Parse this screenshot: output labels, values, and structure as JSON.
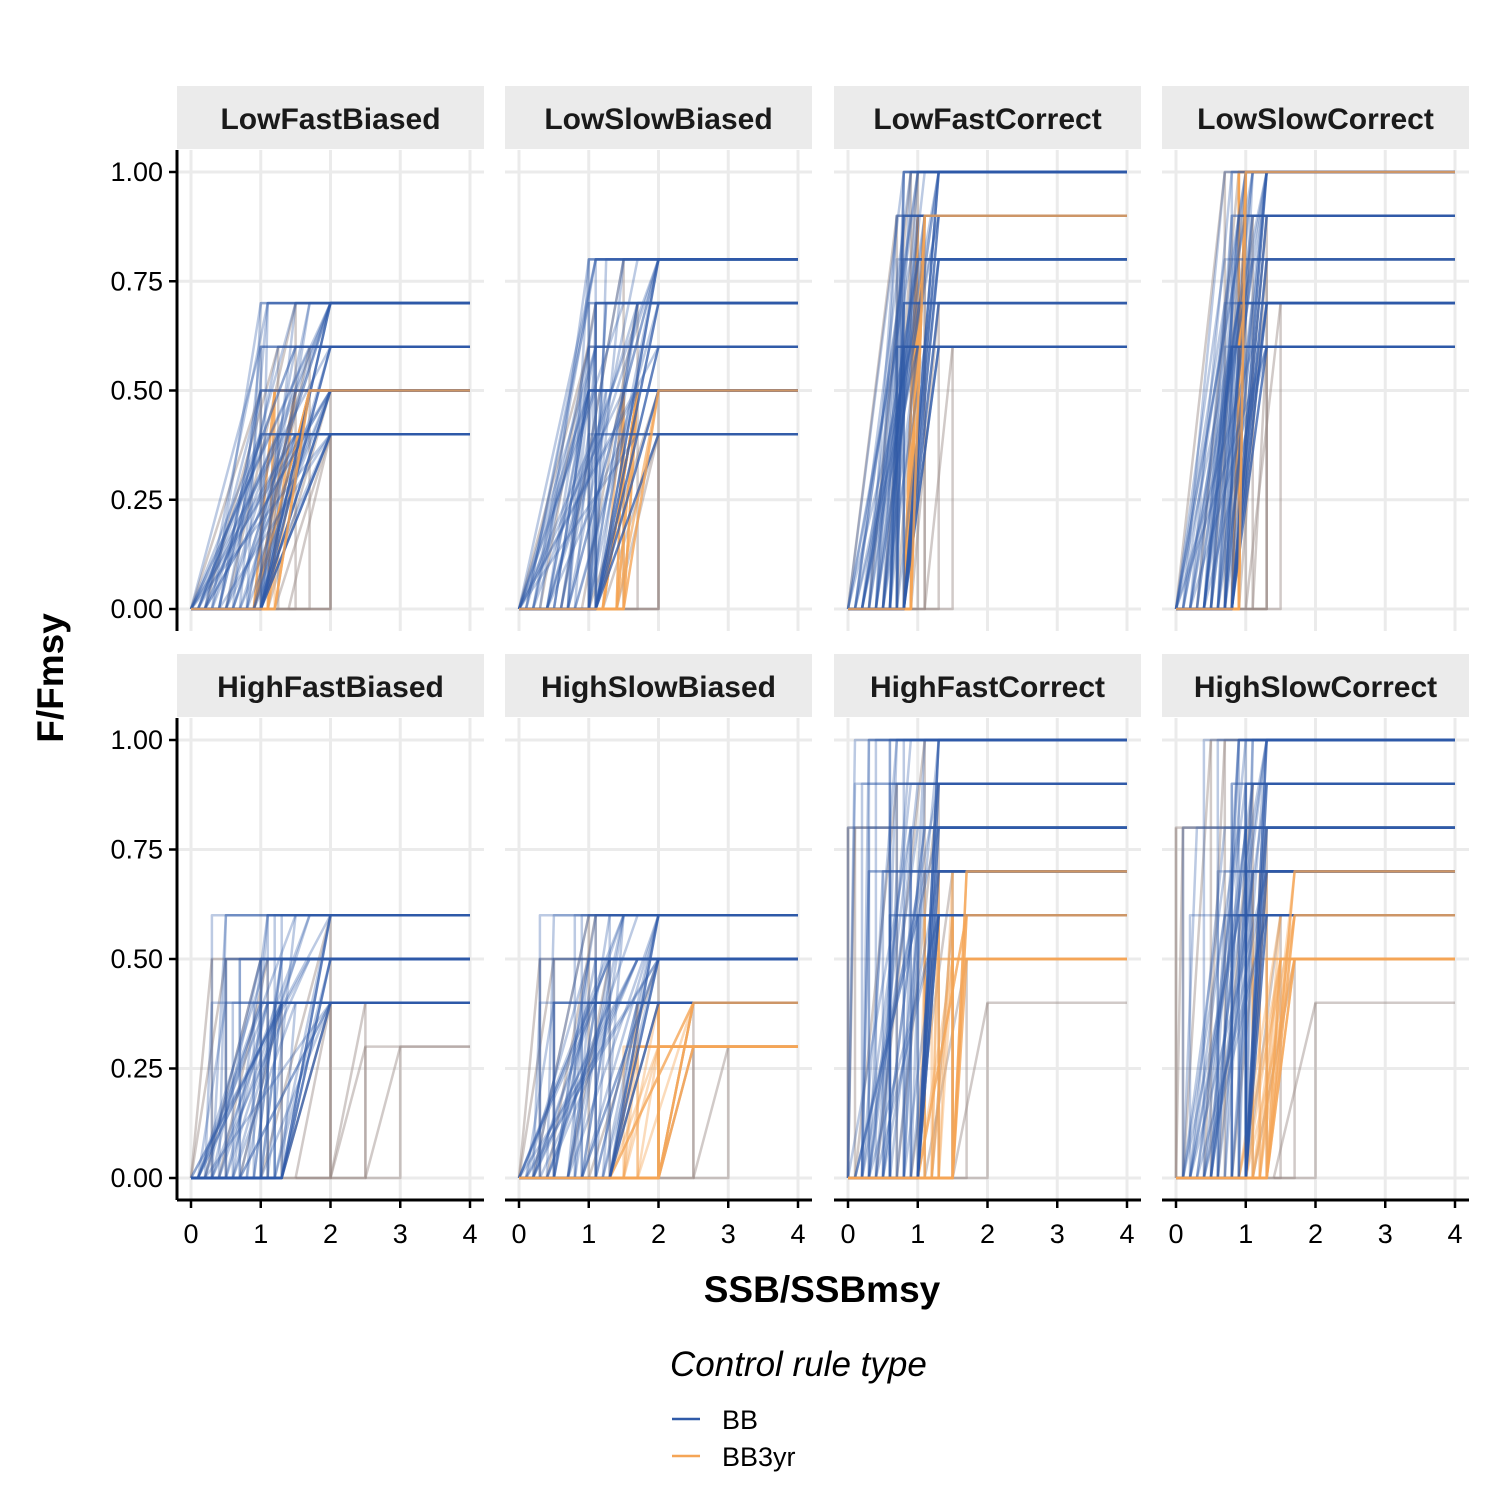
{
  "chart_data": {
    "type": "line",
    "xlabel": "SSB/SSBmsy",
    "ylabel": "F/Fmsy",
    "xlim": [
      0,
      4
    ],
    "ylim": [
      0,
      1
    ],
    "x_ticks": [
      "0",
      "1",
      "2",
      "3",
      "4"
    ],
    "y_ticks": [
      "0.00",
      "0.25",
      "0.50",
      "0.75",
      "1.00"
    ],
    "grid": true,
    "legend": {
      "title": "Control rule type",
      "position": "bottom",
      "items": [
        {
          "name": "BB",
          "color": "#2f5aa8"
        },
        {
          "name": "BB3yr",
          "color": "#f5a556"
        }
      ]
    },
    "panels": [
      {
        "title": "LowFastBiased",
        "BB_lim": [
          0.0,
          0.1,
          0.2,
          0.3,
          0.4,
          0.5,
          0.6,
          0.7,
          0.8,
          0.9,
          1.0,
          1.0
        ],
        "BB_trig": [
          1.0,
          1.1,
          1.25,
          1.5,
          1.7,
          2.0
        ],
        "BB_fmax": [
          0.4,
          0.5,
          0.6,
          0.7
        ],
        "BB3yr_lim": [
          0.9,
          1.1,
          1.2
        ],
        "BB3yr_trig": [
          1.2,
          1.5,
          1.7
        ],
        "BB3yr_fmax": [
          0.5
        ],
        "steps": [
          [
            0.0,
            1.0,
            0.5
          ],
          [
            0.2,
            1.25,
            0.6
          ],
          [
            0.5,
            1.5,
            0.7
          ],
          [
            0.9,
            1.7,
            0.6
          ],
          [
            1.1,
            2.0,
            0.5
          ],
          [
            1.2,
            2.0,
            0.4
          ],
          [
            1.4,
            2.0,
            0.4
          ]
        ]
      },
      {
        "title": "LowSlowBiased",
        "BB_lim": [
          0.0,
          0.1,
          0.2,
          0.3,
          0.4,
          0.5,
          0.6,
          0.7,
          0.8,
          1.0,
          1.0,
          1.1
        ],
        "BB_trig": [
          1.0,
          1.1,
          1.25,
          1.5,
          1.7,
          2.0
        ],
        "BB_fmax": [
          0.4,
          0.5,
          0.6,
          0.7,
          0.8
        ],
        "BB3yr_lim": [
          1.2,
          1.4,
          1.5
        ],
        "BB3yr_trig": [
          1.5,
          1.7,
          2.0
        ],
        "BB3yr_fmax": [
          0.5
        ],
        "steps": [
          [
            0.0,
            1.0,
            0.6
          ],
          [
            0.3,
            1.1,
            0.7
          ],
          [
            0.6,
            1.5,
            0.8
          ],
          [
            0.9,
            1.7,
            0.7
          ],
          [
            1.0,
            2.0,
            0.5
          ],
          [
            1.2,
            2.0,
            0.4
          ],
          [
            1.4,
            2.0,
            0.4
          ]
        ]
      },
      {
        "title": "LowFastCorrect",
        "BB_lim": [
          0.0,
          0.1,
          0.2,
          0.3,
          0.4,
          0.5,
          0.6,
          0.7,
          0.8
        ],
        "BB_trig": [
          0.7,
          0.8,
          0.9,
          1.0,
          1.1,
          1.3
        ],
        "BB_fmax": [
          0.6,
          0.7,
          0.8,
          0.9,
          1.0
        ],
        "BB3yr_lim": [
          0.8,
          0.9
        ],
        "BB3yr_trig": [
          1.0,
          1.1
        ],
        "BB3yr_fmax": [
          0.9
        ],
        "steps": [
          [
            0.0,
            0.7,
            0.9
          ],
          [
            0.3,
            0.9,
            1.0
          ],
          [
            0.5,
            1.0,
            1.0
          ],
          [
            0.7,
            1.1,
            0.9
          ],
          [
            0.8,
            1.1,
            0.8
          ],
          [
            0.9,
            1.3,
            0.7
          ],
          [
            1.1,
            1.5,
            0.6
          ]
        ]
      },
      {
        "title": "LowSlowCorrect",
        "BB_lim": [
          0.0,
          0.1,
          0.2,
          0.3,
          0.4,
          0.5,
          0.6,
          0.7,
          0.8
        ],
        "BB_trig": [
          0.7,
          0.8,
          0.9,
          1.0,
          1.1,
          1.3
        ],
        "BB_fmax": [
          0.6,
          0.7,
          0.8,
          0.9,
          1.0
        ],
        "BB3yr_lim": [
          0.8,
          0.9
        ],
        "BB3yr_trig": [
          0.9,
          1.0
        ],
        "BB3yr_fmax": [
          1.0
        ],
        "steps": [
          [
            0.0,
            0.7,
            1.0
          ],
          [
            0.3,
            0.9,
            1.0
          ],
          [
            0.5,
            1.0,
            1.0
          ],
          [
            0.7,
            1.1,
            0.9
          ],
          [
            0.8,
            1.3,
            0.9
          ],
          [
            0.9,
            1.3,
            0.8
          ],
          [
            1.0,
            1.5,
            0.7
          ],
          [
            1.1,
            1.3,
            0.6
          ]
        ]
      },
      {
        "title": "HighFastBiased",
        "BB_lim": [
          0.0,
          0.1,
          0.2,
          0.3,
          0.4,
          0.5,
          0.6,
          0.7,
          0.8,
          0.9,
          1.0,
          1.1,
          1.2,
          1.3
        ],
        "BB_trig": [
          0.3,
          0.5,
          1.0,
          1.1,
          1.3,
          1.5,
          1.7,
          2.0
        ],
        "BB_fmax": [
          0.4,
          0.5,
          0.6
        ],
        "BB3yr_lim": [],
        "BB3yr_trig": [],
        "BB3yr_fmax": [],
        "steps": [
          [
            0.0,
            0.3,
            0.5
          ],
          [
            0.0,
            0.5,
            0.5
          ],
          [
            0.2,
            1.0,
            0.5
          ],
          [
            0.4,
            1.1,
            0.5
          ],
          [
            0.7,
            1.3,
            0.4
          ],
          [
            1.0,
            2.0,
            0.6
          ],
          [
            1.3,
            2.0,
            0.4
          ],
          [
            1.5,
            2.0,
            0.4
          ],
          [
            2.0,
            2.5,
            0.4
          ],
          [
            2.0,
            2.5,
            0.3
          ],
          [
            2.5,
            3.0,
            0.3
          ]
        ]
      },
      {
        "title": "HighSlowBiased",
        "BB_lim": [
          0.0,
          0.1,
          0.2,
          0.3,
          0.4,
          0.5,
          0.6,
          0.7,
          0.8,
          0.9,
          1.0,
          1.1,
          1.2,
          1.3
        ],
        "BB_trig": [
          0.3,
          0.5,
          1.0,
          1.1,
          1.3,
          1.5,
          1.7,
          2.0
        ],
        "BB_fmax": [
          0.4,
          0.5,
          0.6
        ],
        "BB3yr_lim": [
          1.3,
          1.5,
          1.7,
          2.0
        ],
        "BB3yr_trig": [
          1.5,
          1.7,
          2.0,
          2.5
        ],
        "BB3yr_fmax": [
          0.3,
          0.4
        ],
        "steps": [
          [
            0.0,
            0.3,
            0.5
          ],
          [
            0.0,
            0.5,
            0.5
          ],
          [
            0.2,
            1.0,
            0.6
          ],
          [
            0.4,
            1.1,
            0.6
          ],
          [
            0.7,
            1.3,
            0.5
          ],
          [
            1.0,
            2.0,
            0.5
          ],
          [
            1.3,
            2.0,
            0.4
          ],
          [
            2.0,
            2.5,
            0.4
          ],
          [
            2.0,
            2.5,
            0.3
          ],
          [
            2.5,
            3.0,
            0.3
          ]
        ]
      },
      {
        "title": "HighFastCorrect",
        "BB_lim": [
          0.0,
          0.1,
          0.2,
          0.3,
          0.4,
          0.5,
          0.6,
          0.7,
          0.8,
          0.9,
          1.0
        ],
        "BB_trig": [
          0.0,
          0.1,
          0.3,
          0.5,
          0.7,
          0.9,
          1.0,
          1.1,
          1.3
        ],
        "BB_fmax": [
          0.6,
          0.7,
          0.8,
          0.9,
          1.0
        ],
        "BB3yr_lim": [
          1.0,
          1.1,
          1.2,
          1.3,
          1.5
        ],
        "BB3yr_trig": [
          1.1,
          1.3,
          1.5,
          1.7
        ],
        "BB3yr_fmax": [
          0.5,
          0.6,
          0.7
        ],
        "steps": [
          [
            0.0,
            0.0,
            0.8
          ],
          [
            0.0,
            0.1,
            0.8
          ],
          [
            0.1,
            0.7,
            0.9
          ],
          [
            0.4,
            1.1,
            1.0
          ],
          [
            0.7,
            1.3,
            0.9
          ],
          [
            0.9,
            1.5,
            0.7
          ],
          [
            1.1,
            1.7,
            0.5
          ],
          [
            1.2,
            1.5,
            0.6
          ],
          [
            1.5,
            2.0,
            0.4
          ]
        ]
      },
      {
        "title": "HighSlowCorrect",
        "BB_lim": [
          0.0,
          0.1,
          0.2,
          0.3,
          0.4,
          0.5,
          0.6,
          0.7,
          0.8,
          0.9,
          1.0
        ],
        "BB_trig": [
          0.0,
          0.1,
          0.3,
          0.5,
          0.7,
          0.9,
          1.0,
          1.1,
          1.3
        ],
        "BB_fmax": [
          0.6,
          0.7,
          0.8,
          0.9,
          1.0
        ],
        "BB3yr_lim": [
          0.9,
          1.0,
          1.1,
          1.2,
          1.3
        ],
        "BB3yr_trig": [
          1.1,
          1.3,
          1.5,
          1.7
        ],
        "BB3yr_fmax": [
          0.5,
          0.6,
          0.7
        ],
        "steps": [
          [
            0.0,
            0.0,
            0.8
          ],
          [
            0.0,
            0.1,
            0.8
          ],
          [
            0.1,
            0.5,
            1.0
          ],
          [
            0.4,
            0.7,
            1.0
          ],
          [
            0.6,
            1.1,
            0.9
          ],
          [
            0.8,
            1.3,
            0.8
          ],
          [
            1.0,
            1.5,
            0.6
          ],
          [
            1.1,
            1.7,
            0.5
          ],
          [
            1.4,
            2.0,
            0.4
          ]
        ]
      }
    ]
  }
}
